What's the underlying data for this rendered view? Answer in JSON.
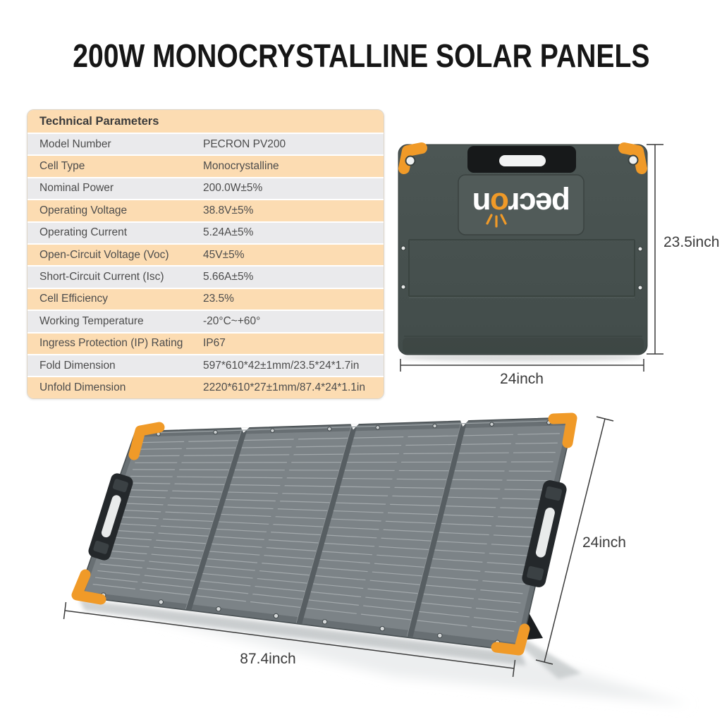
{
  "title": "200W MONOCRYSTALLINE SOLAR PANELS",
  "table": {
    "header": "Technical Parameters",
    "rows": [
      {
        "label": "Model Number",
        "value": "PECRON PV200"
      },
      {
        "label": "Cell Type",
        "value": "Monocrystalline"
      },
      {
        "label": "Nominal Power",
        "value": "200.0W±5%"
      },
      {
        "label": "Operating Voltage",
        "value": "38.8V±5%"
      },
      {
        "label": "Operating Current",
        "value": "5.24A±5%"
      },
      {
        "label": "Open-Circuit Voltage (Voc)",
        "value": "45V±5%"
      },
      {
        "label": "Short-Circuit Current (Isc)",
        "value": "5.66A±5%"
      },
      {
        "label": "Cell Efficiency",
        "value": "23.5%"
      },
      {
        "label": "Working Temperature",
        "value": "-20°C~+60°"
      },
      {
        "label": "Ingress Protection (IP) Rating",
        "value": "IP67"
      },
      {
        "label": "Fold Dimension",
        "value": "597*610*42±1mm/23.5*24*1.7in"
      },
      {
        "label": "Unfold Dimension",
        "value": "2220*610*27±1mm/87.4*24*1.1in"
      }
    ]
  },
  "folded_view": {
    "brand": {
      "pre": "pecr",
      "sun_letter": "o",
      "post": "n"
    },
    "height_label": "23.5inch",
    "width_label": "24inch"
  },
  "unfolded_view": {
    "width_label": "87.4inch",
    "height_label": "24inch"
  },
  "colors": {
    "accent_orange": "#f09a28",
    "table_peach": "#fcdcb2",
    "table_gray": "#eaeaec",
    "panel_dark": "#47514f",
    "panel_cells": "#7c8387"
  }
}
